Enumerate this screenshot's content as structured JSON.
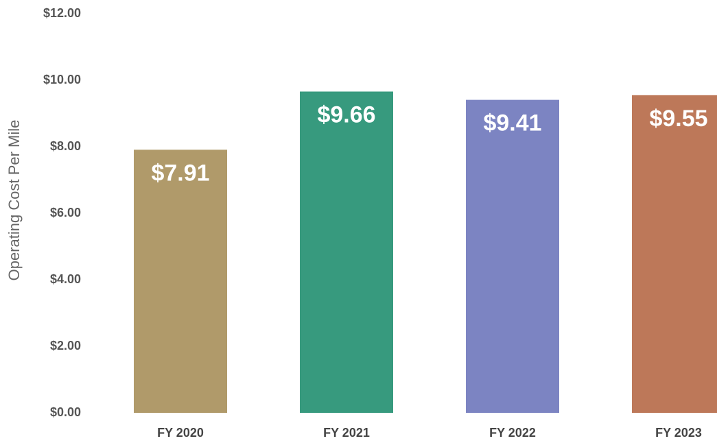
{
  "chart_data": {
    "type": "bar",
    "y_label": "Operating Cost Per Mile",
    "categories": [
      "FY 2020",
      "FY 2021",
      "FY 2022",
      "FY 2023"
    ],
    "values": [
      7.91,
      9.66,
      9.41,
      9.55
    ],
    "value_labels": [
      "$7.91",
      "$9.66",
      "$9.41",
      "$9.55"
    ],
    "colors": [
      "#b09a6a",
      "#379a7e",
      "#7c84c2",
      "#bd7859"
    ],
    "ylim": [
      0,
      12
    ],
    "yticks": [
      {
        "value": 0,
        "label": "$0.00"
      },
      {
        "value": 2,
        "label": "$2.00"
      },
      {
        "value": 4,
        "label": "$4.00"
      },
      {
        "value": 6,
        "label": "$6.00"
      },
      {
        "value": 8,
        "label": "$8.00"
      },
      {
        "value": 10,
        "label": "$10.00"
      },
      {
        "value": 12,
        "label": "$12.00"
      }
    ],
    "grid": false
  }
}
